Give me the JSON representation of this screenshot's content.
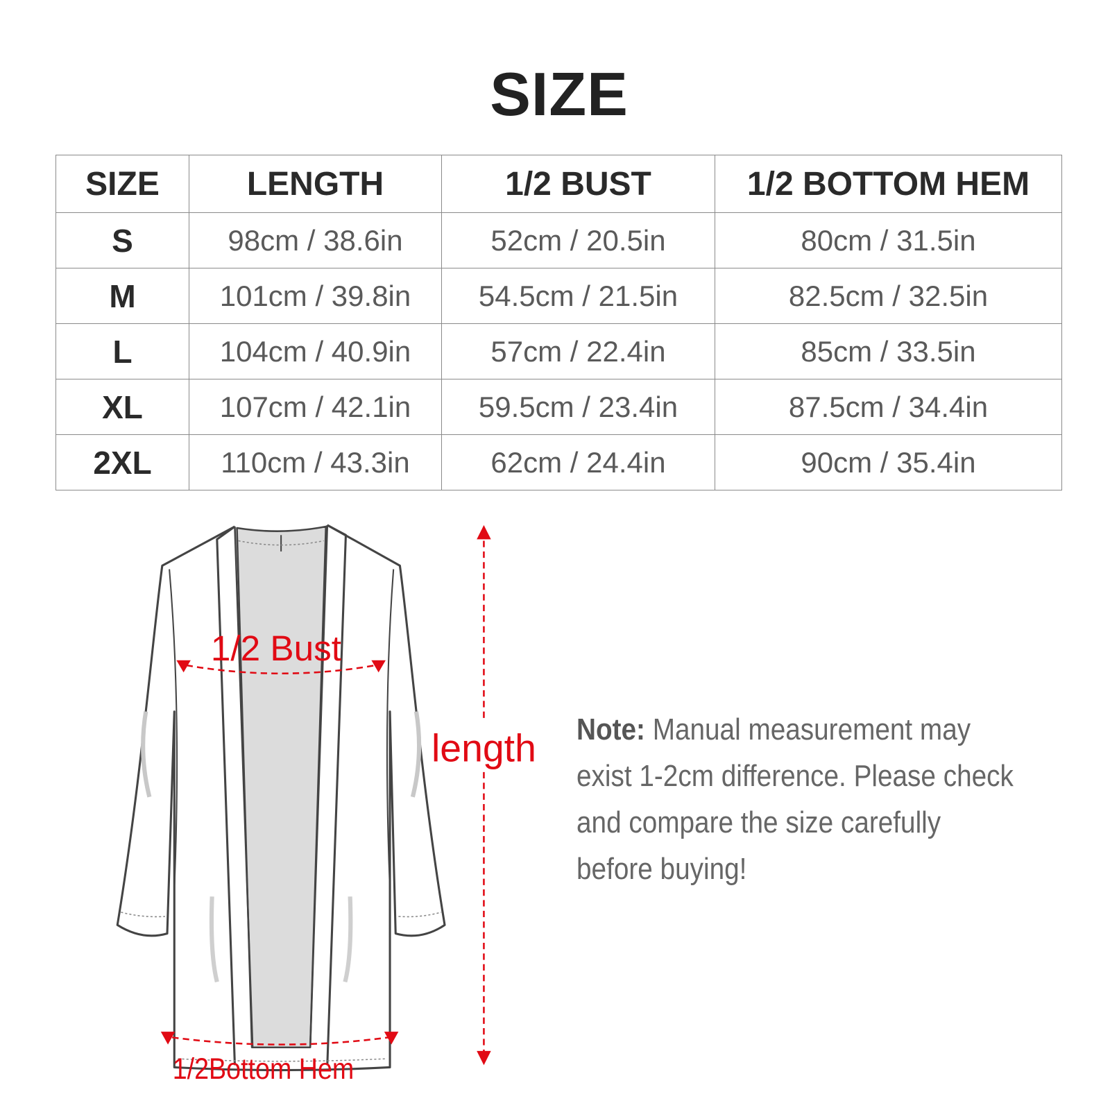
{
  "title": "SIZE",
  "table": {
    "headers": [
      "SIZE",
      "LENGTH",
      "1/2 BUST",
      "1/2 BOTTOM HEM"
    ],
    "rows": [
      [
        "S",
        "98cm / 38.6in",
        "52cm / 20.5in",
        "80cm / 31.5in"
      ],
      [
        "M",
        "101cm / 39.8in",
        "54.5cm / 21.5in",
        "82.5cm / 32.5in"
      ],
      [
        "L",
        "104cm / 40.9in",
        "57cm / 22.4in",
        "85cm / 33.5in"
      ],
      [
        "XL",
        "107cm / 42.1in",
        "59.5cm / 23.4in",
        "87.5cm / 34.4in"
      ],
      [
        "2XL",
        "110cm / 43.3in",
        "62cm / 24.4in",
        "90cm / 35.4in"
      ]
    ]
  },
  "diagram": {
    "bust_label": "1/2 Bust",
    "hem_label": "1/2Bottom Hem",
    "length_label": "length",
    "accent_color": "#e10a14"
  },
  "note": {
    "label": "Note:",
    "text": " Manual measurement may exist 1-2cm difference. Please check and compare the size carefully before buying!"
  }
}
